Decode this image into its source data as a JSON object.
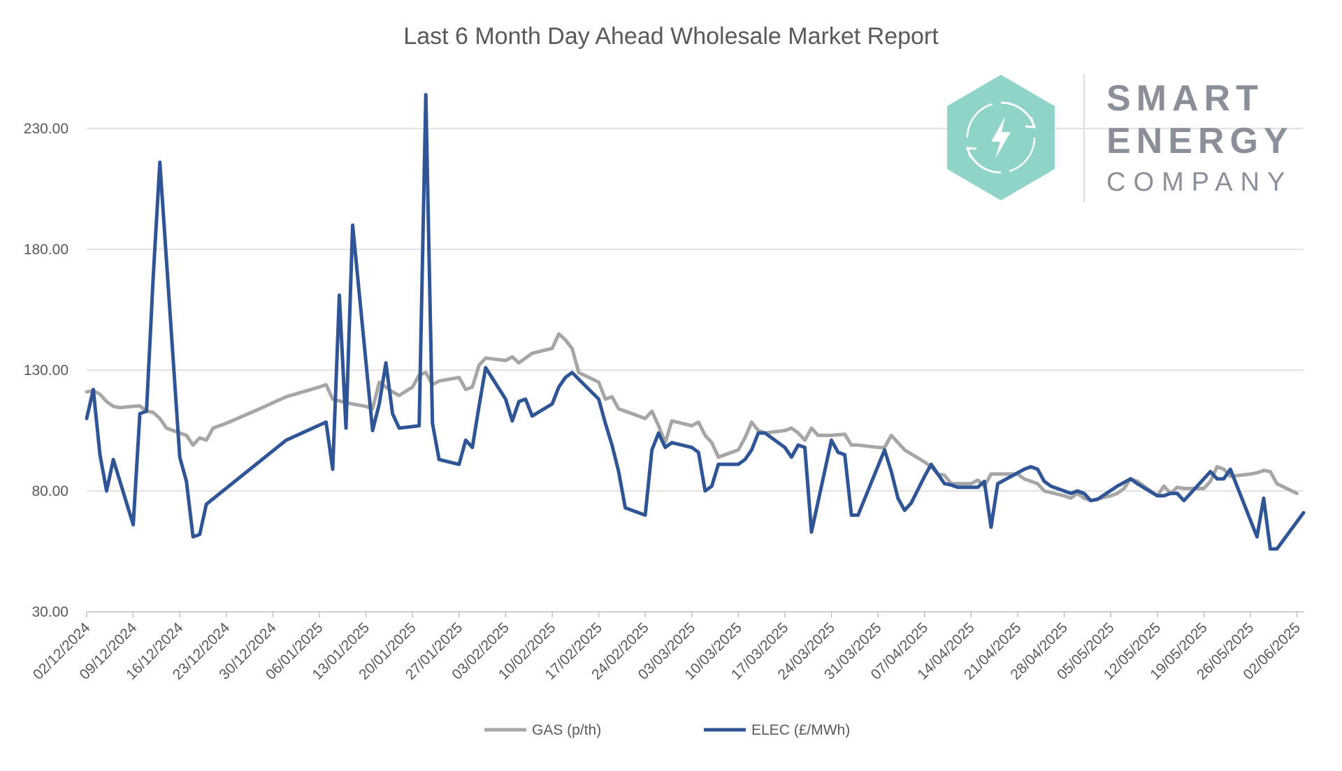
{
  "chart_data": {
    "type": "line",
    "title": "Last 6 Month Day Ahead Wholesale Market Report",
    "xlabel": "",
    "ylabel": "",
    "ylim": [
      30,
      260
    ],
    "y_ticks": [
      "30.00",
      "80.00",
      "130.00",
      "180.00",
      "230.00"
    ],
    "y_tick_values": [
      30,
      80,
      130,
      180,
      230
    ],
    "x_range": [
      "2024-12-02",
      "2025-06-03"
    ],
    "x_tick_labels": [
      "02/12/2024",
      "09/12/2024",
      "16/12/2024",
      "23/12/2024",
      "30/12/2024",
      "06/01/2025",
      "13/01/2025",
      "20/01/2025",
      "27/01/2025",
      "03/02/2025",
      "10/02/2025",
      "17/02/2025",
      "24/02/2025",
      "03/03/2025",
      "10/03/2025",
      "17/03/2025",
      "24/03/2025",
      "31/03/2025",
      "07/04/2025",
      "14/04/2025",
      "21/04/2025",
      "28/04/2025",
      "05/05/2025",
      "12/05/2025",
      "19/05/2025",
      "26/05/2025",
      "02/06/2025"
    ],
    "grid": true,
    "legend_position": "bottom",
    "series": [
      {
        "name": "GAS (p/th)",
        "color": "#a6a6a6",
        "points": [
          [
            "2024-12-02",
            121
          ],
          [
            "2024-12-03",
            121.5
          ],
          [
            "2024-12-04",
            120
          ],
          [
            "2024-12-05",
            117
          ],
          [
            "2024-12-06",
            115
          ],
          [
            "2024-12-07",
            114.5
          ],
          [
            "2024-12-09",
            115
          ],
          [
            "2024-12-10",
            115.2
          ],
          [
            "2024-12-11",
            113
          ],
          [
            "2024-12-12",
            112.5
          ],
          [
            "2024-12-13",
            110
          ],
          [
            "2024-12-14",
            106
          ],
          [
            "2024-12-16",
            104
          ],
          [
            "2024-12-17",
            103
          ],
          [
            "2024-12-18",
            99
          ],
          [
            "2024-12-19",
            102
          ],
          [
            "2024-12-20",
            101
          ],
          [
            "2024-12-21",
            106
          ],
          [
            "2024-12-23",
            108
          ],
          [
            "2024-12-28",
            114
          ],
          [
            "2025-01-01",
            119
          ],
          [
            "2025-01-06",
            123
          ],
          [
            "2025-01-07",
            124
          ],
          [
            "2025-01-08",
            118
          ],
          [
            "2025-01-10",
            116.5
          ],
          [
            "2025-01-13",
            115
          ],
          [
            "2025-01-14",
            114
          ],
          [
            "2025-01-15",
            125
          ],
          [
            "2025-01-17",
            121
          ],
          [
            "2025-01-18",
            119.5
          ],
          [
            "2025-01-20",
            123
          ],
          [
            "2025-01-21",
            128
          ],
          [
            "2025-01-22",
            129
          ],
          [
            "2025-01-23",
            124
          ],
          [
            "2025-01-24",
            125.5
          ],
          [
            "2025-01-27",
            127
          ],
          [
            "2025-01-28",
            122
          ],
          [
            "2025-01-29",
            123
          ],
          [
            "2025-01-30",
            132
          ],
          [
            "2025-01-31",
            135
          ],
          [
            "2025-02-03",
            134
          ],
          [
            "2025-02-04",
            135.5
          ],
          [
            "2025-02-05",
            133
          ],
          [
            "2025-02-06",
            135
          ],
          [
            "2025-02-07",
            137
          ],
          [
            "2025-02-10",
            139
          ],
          [
            "2025-02-11",
            145
          ],
          [
            "2025-02-12",
            142.5
          ],
          [
            "2025-02-13",
            139
          ],
          [
            "2025-02-14",
            129
          ],
          [
            "2025-02-17",
            125
          ],
          [
            "2025-02-18",
            118
          ],
          [
            "2025-02-19",
            119
          ],
          [
            "2025-02-20",
            114
          ],
          [
            "2025-02-24",
            110
          ],
          [
            "2025-02-25",
            113
          ],
          [
            "2025-02-26",
            107
          ],
          [
            "2025-02-27",
            100
          ],
          [
            "2025-02-28",
            109
          ],
          [
            "2025-03-03",
            107
          ],
          [
            "2025-03-04",
            108.5
          ],
          [
            "2025-03-05",
            103
          ],
          [
            "2025-03-06",
            100
          ],
          [
            "2025-03-07",
            94
          ],
          [
            "2025-03-10",
            97
          ],
          [
            "2025-03-11",
            102
          ],
          [
            "2025-03-12",
            108.5
          ],
          [
            "2025-03-13",
            105
          ],
          [
            "2025-03-14",
            104
          ],
          [
            "2025-03-17",
            105
          ],
          [
            "2025-03-18",
            106
          ],
          [
            "2025-03-19",
            104
          ],
          [
            "2025-03-20",
            101
          ],
          [
            "2025-03-21",
            106
          ],
          [
            "2025-03-22",
            103
          ],
          [
            "2025-03-24",
            103
          ],
          [
            "2025-03-26",
            103.5
          ],
          [
            "2025-03-27",
            99
          ],
          [
            "2025-03-28",
            99
          ],
          [
            "2025-03-31",
            98
          ],
          [
            "2025-04-01",
            98
          ],
          [
            "2025-04-02",
            103
          ],
          [
            "2025-04-03",
            100
          ],
          [
            "2025-04-04",
            97
          ],
          [
            "2025-04-07",
            92
          ],
          [
            "2025-04-08",
            90
          ],
          [
            "2025-04-09",
            87
          ],
          [
            "2025-04-10",
            86.5
          ],
          [
            "2025-04-11",
            83
          ],
          [
            "2025-04-14",
            83
          ],
          [
            "2025-04-15",
            84.5
          ],
          [
            "2025-04-16",
            82
          ],
          [
            "2025-04-17",
            87
          ],
          [
            "2025-04-21",
            87
          ],
          [
            "2025-04-22",
            85
          ],
          [
            "2025-04-24",
            83
          ],
          [
            "2025-04-25",
            80
          ],
          [
            "2025-04-28",
            78
          ],
          [
            "2025-04-29",
            77
          ],
          [
            "2025-04-30",
            79
          ],
          [
            "2025-05-01",
            77
          ],
          [
            "2025-05-02",
            76
          ],
          [
            "2025-05-05",
            78
          ],
          [
            "2025-05-06",
            79
          ],
          [
            "2025-05-07",
            81
          ],
          [
            "2025-05-08",
            85
          ],
          [
            "2025-05-09",
            84
          ],
          [
            "2025-05-12",
            78
          ],
          [
            "2025-05-13",
            82
          ],
          [
            "2025-05-14",
            79
          ],
          [
            "2025-05-15",
            81.5
          ],
          [
            "2025-05-16",
            81
          ],
          [
            "2025-05-19",
            81
          ],
          [
            "2025-05-20",
            84
          ],
          [
            "2025-05-21",
            90
          ],
          [
            "2025-05-22",
            89
          ],
          [
            "2025-05-23",
            86
          ],
          [
            "2025-05-26",
            87
          ],
          [
            "2025-05-27",
            87.5
          ],
          [
            "2025-05-28",
            88.5
          ],
          [
            "2025-05-29",
            88
          ],
          [
            "2025-05-30",
            83
          ],
          [
            "2025-06-02",
            79
          ]
        ]
      },
      {
        "name": "ELEC (£/MWh)",
        "color": "#2f5597",
        "points": [
          [
            "2024-12-02",
            110
          ],
          [
            "2024-12-03",
            122
          ],
          [
            "2024-12-04",
            95
          ],
          [
            "2024-12-05",
            80
          ],
          [
            "2024-12-06",
            93
          ],
          [
            "2024-12-09",
            66
          ],
          [
            "2024-12-10",
            112
          ],
          [
            "2024-12-11",
            113
          ],
          [
            "2024-12-12",
            168
          ],
          [
            "2024-12-13",
            216
          ],
          [
            "2024-12-16",
            94
          ],
          [
            "2024-12-17",
            84
          ],
          [
            "2024-12-18",
            61
          ],
          [
            "2024-12-19",
            62
          ],
          [
            "2024-12-20",
            74.5
          ],
          [
            "2025-01-01",
            101
          ],
          [
            "2025-01-07",
            108.5
          ],
          [
            "2025-01-08",
            89
          ],
          [
            "2025-01-09",
            161
          ],
          [
            "2025-01-10",
            106
          ],
          [
            "2025-01-11",
            190
          ],
          [
            "2025-01-14",
            105
          ],
          [
            "2025-01-15",
            116
          ],
          [
            "2025-01-16",
            133
          ],
          [
            "2025-01-17",
            112
          ],
          [
            "2025-01-18",
            106
          ],
          [
            "2025-01-21",
            107
          ],
          [
            "2025-01-22",
            244
          ],
          [
            "2025-01-23",
            108
          ],
          [
            "2025-01-24",
            93
          ],
          [
            "2025-01-27",
            91
          ],
          [
            "2025-01-28",
            101
          ],
          [
            "2025-01-29",
            98
          ],
          [
            "2025-01-30",
            115
          ],
          [
            "2025-01-31",
            131
          ],
          [
            "2025-02-03",
            118
          ],
          [
            "2025-02-04",
            109
          ],
          [
            "2025-02-05",
            117
          ],
          [
            "2025-02-06",
            118
          ],
          [
            "2025-02-07",
            111
          ],
          [
            "2025-02-10",
            116
          ],
          [
            "2025-02-11",
            123
          ],
          [
            "2025-02-12",
            127
          ],
          [
            "2025-02-13",
            129
          ],
          [
            "2025-02-17",
            118
          ],
          [
            "2025-02-18",
            108
          ],
          [
            "2025-02-19",
            99
          ],
          [
            "2025-02-20",
            88
          ],
          [
            "2025-02-21",
            73
          ],
          [
            "2025-02-24",
            70
          ],
          [
            "2025-02-25",
            97
          ],
          [
            "2025-02-26",
            104
          ],
          [
            "2025-02-27",
            98
          ],
          [
            "2025-02-28",
            100
          ],
          [
            "2025-03-03",
            98
          ],
          [
            "2025-03-04",
            96
          ],
          [
            "2025-03-05",
            80
          ],
          [
            "2025-03-06",
            82
          ],
          [
            "2025-03-07",
            91
          ],
          [
            "2025-03-10",
            91
          ],
          [
            "2025-03-11",
            93
          ],
          [
            "2025-03-12",
            97
          ],
          [
            "2025-03-13",
            104
          ],
          [
            "2025-03-14",
            104
          ],
          [
            "2025-03-17",
            98
          ],
          [
            "2025-03-18",
            94
          ],
          [
            "2025-03-19",
            99
          ],
          [
            "2025-03-20",
            98
          ],
          [
            "2025-03-21",
            63
          ],
          [
            "2025-03-24",
            101
          ],
          [
            "2025-03-25",
            96
          ],
          [
            "2025-03-26",
            95
          ],
          [
            "2025-03-27",
            70
          ],
          [
            "2025-03-28",
            70
          ],
          [
            "2025-04-01",
            97
          ],
          [
            "2025-04-02",
            88
          ],
          [
            "2025-04-03",
            77
          ],
          [
            "2025-04-04",
            72
          ],
          [
            "2025-04-05",
            75
          ],
          [
            "2025-04-07",
            86
          ],
          [
            "2025-04-08",
            91
          ],
          [
            "2025-04-10",
            83
          ],
          [
            "2025-04-11",
            82.5
          ],
          [
            "2025-04-12",
            81.5
          ],
          [
            "2025-04-15",
            81.5
          ],
          [
            "2025-04-16",
            84
          ],
          [
            "2025-04-17",
            65
          ],
          [
            "2025-04-18",
            83
          ],
          [
            "2025-04-22",
            89
          ],
          [
            "2025-04-23",
            90
          ],
          [
            "2025-04-24",
            89
          ],
          [
            "2025-04-25",
            84
          ],
          [
            "2025-04-26",
            82
          ],
          [
            "2025-04-29",
            79
          ],
          [
            "2025-04-30",
            80
          ],
          [
            "2025-05-01",
            79
          ],
          [
            "2025-05-02",
            76
          ],
          [
            "2025-05-03",
            76.5
          ],
          [
            "2025-05-06",
            82
          ],
          [
            "2025-05-08",
            85
          ],
          [
            "2025-05-09",
            83
          ],
          [
            "2025-05-12",
            78
          ],
          [
            "2025-05-13",
            78
          ],
          [
            "2025-05-14",
            79
          ],
          [
            "2025-05-15",
            79
          ],
          [
            "2025-05-16",
            76
          ],
          [
            "2025-05-20",
            88
          ],
          [
            "2025-05-21",
            85
          ],
          [
            "2025-05-22",
            85
          ],
          [
            "2025-05-23",
            89
          ],
          [
            "2025-05-27",
            61
          ],
          [
            "2025-05-28",
            77
          ],
          [
            "2025-05-29",
            56
          ],
          [
            "2025-05-30",
            56
          ],
          [
            "2025-06-03",
            71
          ]
        ]
      }
    ]
  },
  "logo": {
    "line1": "SMART",
    "line2": "ENERGY",
    "line3": "COMPANY",
    "hex_color": "#8fd3c9",
    "icon": "lightning-refresh-icon"
  },
  "colors": {
    "gas": "#a6a6a6",
    "elec": "#2f5597",
    "grid": "#d9d9d9",
    "text": "#595959"
  }
}
